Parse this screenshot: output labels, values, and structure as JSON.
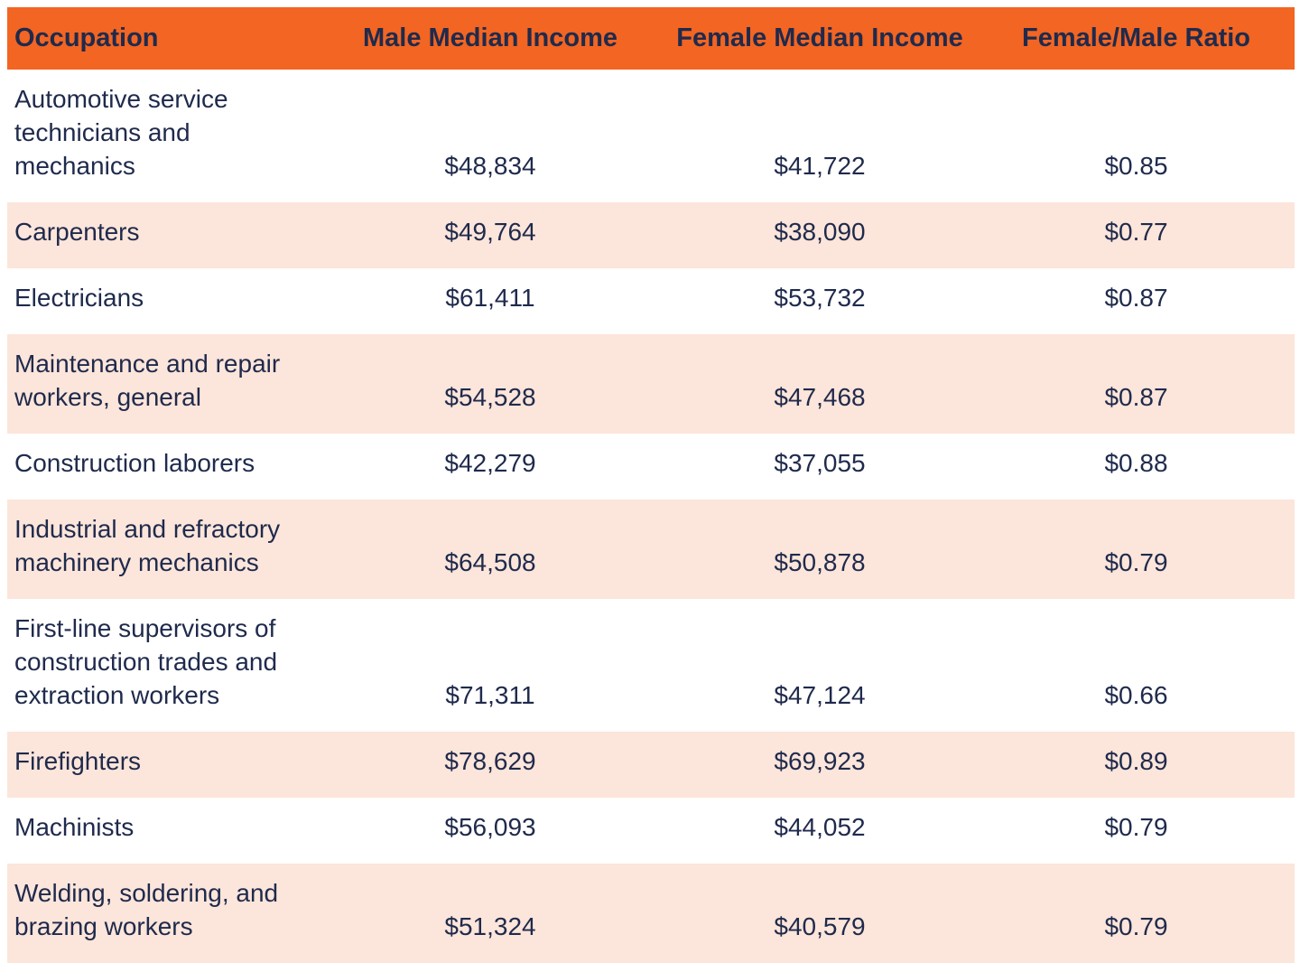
{
  "colors": {
    "header_bg": "#F26522",
    "alt_row_bg": "#FCE5DA",
    "text": "#1F2A4C"
  },
  "chart_data": {
    "type": "table",
    "columns": [
      "Occupation",
      "Male Median Income",
      "Female Median Income",
      "Female/Male Ratio"
    ],
    "rows": [
      {
        "occupation": "Automotive service technicians and mechanics",
        "male_income": "$48,834",
        "female_income": "$41,722",
        "ratio": "$0.85"
      },
      {
        "occupation": "Carpenters",
        "male_income": "$49,764",
        "female_income": "$38,090",
        "ratio": "$0.77"
      },
      {
        "occupation": "Electricians",
        "male_income": "$61,411",
        "female_income": "$53,732",
        "ratio": "$0.87"
      },
      {
        "occupation": "Maintenance and repair workers, general",
        "male_income": "$54,528",
        "female_income": "$47,468",
        "ratio": "$0.87"
      },
      {
        "occupation": "Construction laborers",
        "male_income": "$42,279",
        "female_income": "$37,055",
        "ratio": "$0.88"
      },
      {
        "occupation": "Industrial and refractory machinery mechanics",
        "male_income": "$64,508",
        "female_income": "$50,878",
        "ratio": "$0.79"
      },
      {
        "occupation": "First-line supervisors of construction trades and extraction workers",
        "male_income": "$71,311",
        "female_income": "$47,124",
        "ratio": "$0.66"
      },
      {
        "occupation": "Firefighters",
        "male_income": "$78,629",
        "female_income": "$69,923",
        "ratio": "$0.89"
      },
      {
        "occupation": "Machinists",
        "male_income": "$56,093",
        "female_income": "$44,052",
        "ratio": "$0.79"
      },
      {
        "occupation": "Welding, soldering, and brazing workers",
        "male_income": "$51,324",
        "female_income": "$40,579",
        "ratio": "$0.79"
      }
    ]
  }
}
